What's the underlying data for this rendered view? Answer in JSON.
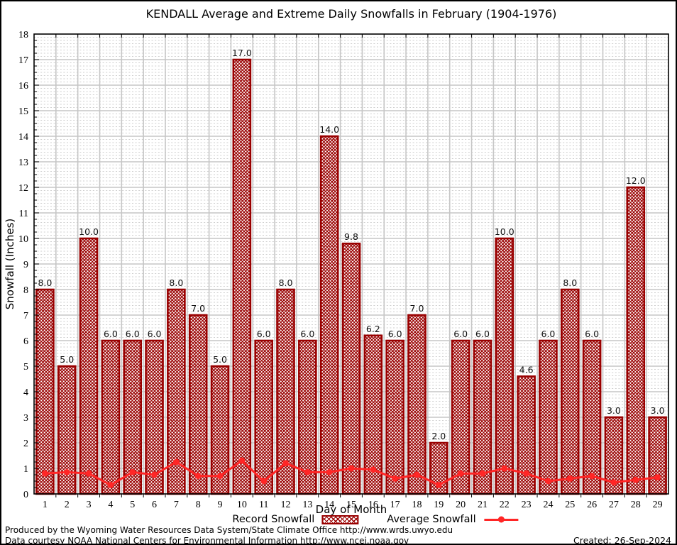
{
  "title": "KENDALL Average and Extreme Daily Snowfalls in February (1904-1976)",
  "chart_data": {
    "type": "bar",
    "title": "KENDALL Average and Extreme Daily Snowfalls in February (1904-1976)",
    "xlabel": "Day of Month",
    "ylabel": "Snowfall (Inches)",
    "ylim": [
      0,
      18
    ],
    "ytick_step": 1,
    "grid": true,
    "legend_position": "bottom",
    "categories": [
      1,
      2,
      3,
      4,
      5,
      6,
      7,
      8,
      9,
      10,
      11,
      12,
      13,
      14,
      15,
      16,
      17,
      18,
      19,
      20,
      21,
      22,
      23,
      24,
      25,
      26,
      27,
      28,
      29
    ],
    "series": [
      {
        "name": "Record Snowfall",
        "type": "bar",
        "values": [
          8.0,
          5.0,
          10.0,
          6.0,
          6.0,
          6.0,
          8.0,
          7.0,
          5.0,
          17.0,
          6.0,
          8.0,
          6.0,
          14.0,
          9.8,
          6.2,
          6.0,
          7.0,
          2.0,
          6.0,
          6.0,
          10.0,
          4.6,
          6.0,
          8.0,
          6.0,
          3.0,
          12.0,
          3.0
        ]
      },
      {
        "name": "Average Snowfall",
        "type": "line",
        "values": [
          0.8,
          0.85,
          0.8,
          0.35,
          0.85,
          0.75,
          1.25,
          0.7,
          0.7,
          1.3,
          0.5,
          1.2,
          0.85,
          0.85,
          1.0,
          0.95,
          0.6,
          0.75,
          0.35,
          0.8,
          0.8,
          1.0,
          0.8,
          0.5,
          0.6,
          0.7,
          0.45,
          0.55,
          0.65
        ]
      }
    ],
    "bar_color": "#990000",
    "line_color": "#ff2626",
    "grid_color": "#c6c6c6"
  },
  "legend": {
    "record_label": "Record Snowfall",
    "average_label": "Average Snowfall"
  },
  "footer": {
    "line1": "Produced by the Wyoming Water Resources Data System/State Climate Office http://www.wrds.uwyo.edu",
    "line2": "Data courtesy NOAA National Centers for Environmental Information http://www.ncei.noaa.gov",
    "created": "Created: 26-Sep-2024"
  }
}
